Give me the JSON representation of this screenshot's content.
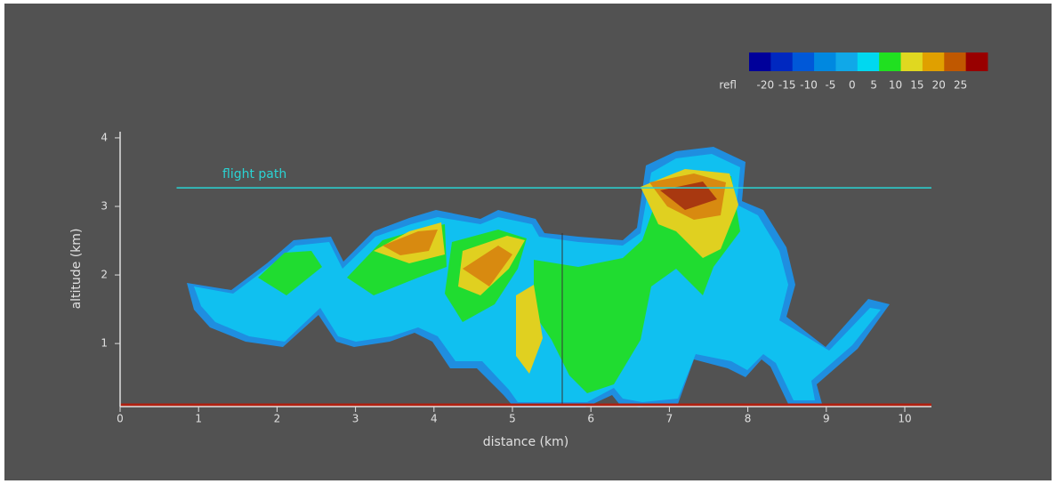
{
  "chart_data": {
    "type": "heatmap",
    "xlabel": "distance (km)",
    "ylabel": "altitude (km)",
    "xlim": [
      0,
      10.34
    ],
    "xticks": [
      0,
      1,
      2,
      3,
      4,
      5,
      6,
      7,
      8,
      9,
      10
    ],
    "ylim": [
      0.08,
      4.09
    ],
    "yticks": [
      1,
      2,
      3,
      4
    ],
    "colorbar": {
      "label": "refl",
      "clim": [
        -25,
        30
      ],
      "ticks": [
        -20,
        -15,
        -10,
        -5,
        0,
        5,
        10,
        15,
        20,
        25
      ],
      "colors": [
        "#00009a",
        "#0028c0",
        "#0058d8",
        "#0088e0",
        "#10a8e8",
        "#00d8f0",
        "#20e020",
        "#e0d820",
        "#e0a000",
        "#c05800",
        "#980000"
      ]
    },
    "flight_path": {
      "label": "flight path",
      "altitude": 3.27,
      "x": [
        0.72,
        10.34
      ],
      "color": "#2ad4d4"
    }
  }
}
